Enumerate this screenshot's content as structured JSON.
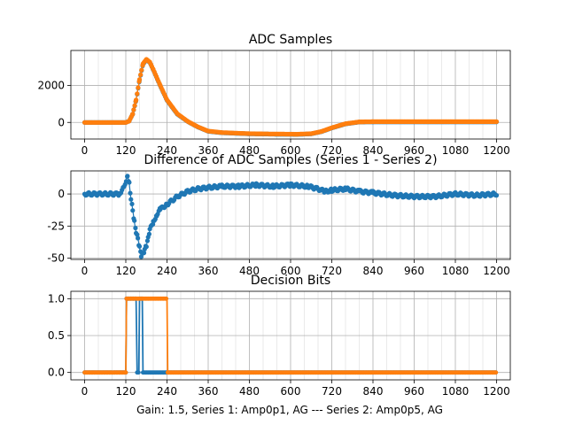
{
  "figure": {
    "xlabel": "Gain: 1.5, Series 1: Amp0p1, AG --- Series 2: Amp0p5, AG"
  },
  "colors": {
    "series1": "#1f77b4",
    "series2": "#ff7f0e",
    "grid": "#b0b0b0",
    "axis": "#000000"
  },
  "chart_data": [
    {
      "type": "scatter",
      "title": "ADC Samples",
      "xlim": [
        -40,
        1240
      ],
      "ylim": [
        -900,
        3900
      ],
      "x_ticks": [
        0,
        120,
        240,
        360,
        480,
        600,
        720,
        840,
        960,
        1080,
        1200
      ],
      "y_ticks": [
        0,
        2000
      ],
      "grid": true,
      "series": [
        {
          "name": "Series 1",
          "color": "#1f77b4",
          "x": [
            0,
            120,
            130,
            140,
            150,
            160,
            170,
            180,
            190,
            200,
            220,
            240,
            270,
            300,
            330,
            360,
            400,
            480,
            560,
            620,
            660,
            690,
            720,
            760,
            800,
            840,
            960,
            1080,
            1200
          ],
          "y": [
            0,
            0,
            80,
            450,
            1200,
            2300,
            3150,
            3400,
            3250,
            2850,
            2000,
            1200,
            450,
            50,
            -250,
            -480,
            -560,
            -620,
            -640,
            -650,
            -620,
            -500,
            -300,
            -80,
            20,
            30,
            30,
            30,
            30
          ]
        },
        {
          "name": "Series 2",
          "color": "#ff7f0e",
          "x": [
            0,
            120,
            130,
            140,
            150,
            160,
            170,
            180,
            190,
            200,
            220,
            240,
            270,
            300,
            330,
            360,
            400,
            480,
            560,
            620,
            660,
            690,
            720,
            760,
            800,
            840,
            960,
            1080,
            1200
          ],
          "y": [
            0,
            0,
            80,
            460,
            1220,
            2330,
            3180,
            3420,
            3270,
            2870,
            2020,
            1220,
            470,
            60,
            -240,
            -470,
            -550,
            -610,
            -630,
            -640,
            -610,
            -490,
            -290,
            -70,
            30,
            40,
            40,
            40,
            40
          ]
        }
      ]
    },
    {
      "type": "scatter",
      "title": "Difference of ADC Samples (Series 1 - Series 2)",
      "xlim": [
        -40,
        1240
      ],
      "ylim": [
        -51,
        18
      ],
      "x_ticks": [
        0,
        120,
        240,
        360,
        480,
        600,
        720,
        840,
        960,
        1080,
        1200
      ],
      "y_ticks": [
        0,
        -25,
        -50
      ],
      "grid": true,
      "series": [
        {
          "name": "Series 1 - Series 2",
          "color": "#1f77b4",
          "x": [
            0,
            60,
            100,
            115,
            125,
            130,
            135,
            140,
            145,
            150,
            155,
            160,
            165,
            170,
            175,
            180,
            185,
            190,
            200,
            210,
            220,
            240,
            270,
            300,
            330,
            360,
            400,
            450,
            500,
            550,
            600,
            650,
            680,
            700,
            720,
            760,
            800,
            840,
            900,
            960,
            1020,
            1080,
            1140,
            1200
          ],
          "y": [
            0,
            0,
            0,
            5,
            15,
            8,
            -4,
            -12,
            -22,
            -30,
            -34,
            -42,
            -48,
            -46,
            -44,
            -40,
            -34,
            -28,
            -22,
            -16,
            -12,
            -8,
            -2,
            2,
            4,
            5,
            6,
            6,
            7,
            6,
            7,
            6,
            4,
            2,
            3,
            4,
            2,
            1,
            -1,
            -2,
            -2,
            0,
            -1,
            0
          ]
        }
      ]
    },
    {
      "type": "line",
      "title": "Decision Bits",
      "xlim": [
        -40,
        1240
      ],
      "ylim": [
        -0.1,
        1.1
      ],
      "x_ticks": [
        0,
        120,
        240,
        360,
        480,
        600,
        720,
        840,
        960,
        1080,
        1200
      ],
      "y_ticks": [
        0.0,
        0.5,
        1.0
      ],
      "grid": true,
      "series": [
        {
          "name": "Series 1",
          "color": "#1f77b4",
          "x": [
            0,
            120,
            122,
            150,
            153,
            158,
            160,
            168,
            170,
            240,
            242,
            1200
          ],
          "y": [
            0,
            0,
            1,
            1,
            0,
            0,
            1,
            1,
            0,
            0,
            0,
            0
          ]
        },
        {
          "name": "Series 2",
          "color": "#ff7f0e",
          "x": [
            0,
            120,
            122,
            240,
            242,
            1200
          ],
          "y": [
            0,
            0,
            1,
            1,
            0,
            0
          ]
        }
      ]
    }
  ]
}
